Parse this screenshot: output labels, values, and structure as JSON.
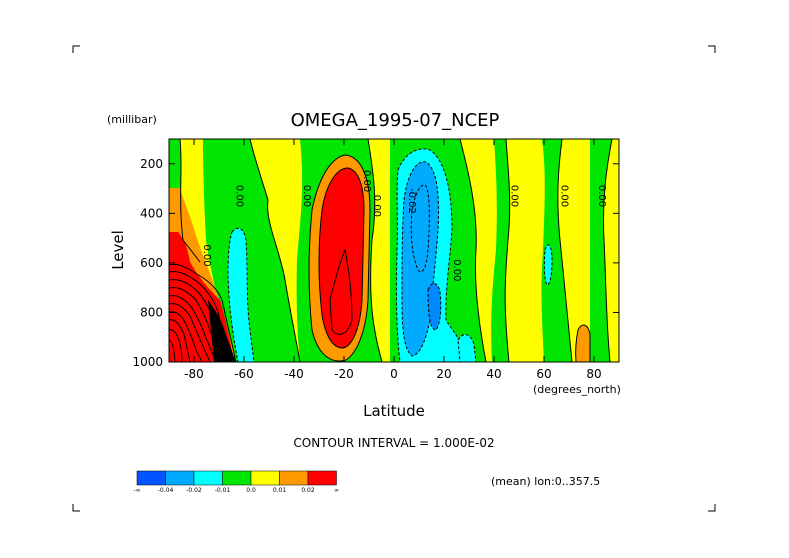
{
  "chart_data": {
    "type": "heatmap",
    "title": "OMEGA_1995-07_NCEP",
    "xlabel": "Latitude",
    "x_units": "(degrees_north)",
    "ylabel": "Level",
    "y_units": "(millibar)",
    "xlim": [
      -90,
      90
    ],
    "ylim": [
      1000,
      100
    ],
    "x_ticks": [
      -80,
      -60,
      -40,
      -20,
      0,
      20,
      40,
      60,
      80
    ],
    "x_tick_labels": [
      "-80",
      "-60",
      "-40",
      "-20",
      "0",
      "20",
      "40",
      "60",
      "80"
    ],
    "y_ticks": [
      200,
      400,
      600,
      800,
      1000
    ],
    "y_tick_labels": [
      "200",
      "400",
      "600",
      "800",
      "1000"
    ],
    "contour_interval_text": "CONTOUR INTERVAL = 1.000E-02",
    "footer_text": "(mean) lon:0..357.5",
    "colorbar": {
      "colors": [
        "#0055ff",
        "#00aaff",
        "#00ffff",
        "#00e600",
        "#ffff00",
        "#ff9900",
        "#ff0000"
      ],
      "labels": [
        "-∞",
        "-0.04",
        "-0.02",
        "-0.01",
        "0.0",
        "0.01",
        "0.02",
        "∞"
      ]
    },
    "contour_labels": [
      {
        "text": "0.00",
        "lat": -76,
        "lev": 570
      },
      {
        "text": "0.00",
        "lat": -63,
        "lev": 330
      },
      {
        "text": "0.00",
        "lat": -36,
        "lev": 330
      },
      {
        "text": "0.00",
        "lat": -12,
        "lev": 270
      },
      {
        "text": "0.00",
        "lat": -8,
        "lev": 370
      },
      {
        "text": "-0.02",
        "lat": 6,
        "lev": 350
      },
      {
        "text": "0.00",
        "lat": 24,
        "lev": 630
      },
      {
        "text": "0.00",
        "lat": 47,
        "lev": 330
      },
      {
        "text": "0.00",
        "lat": 67,
        "lev": 330
      },
      {
        "text": "0.00",
        "lat": 82,
        "lev": 330
      }
    ]
  }
}
